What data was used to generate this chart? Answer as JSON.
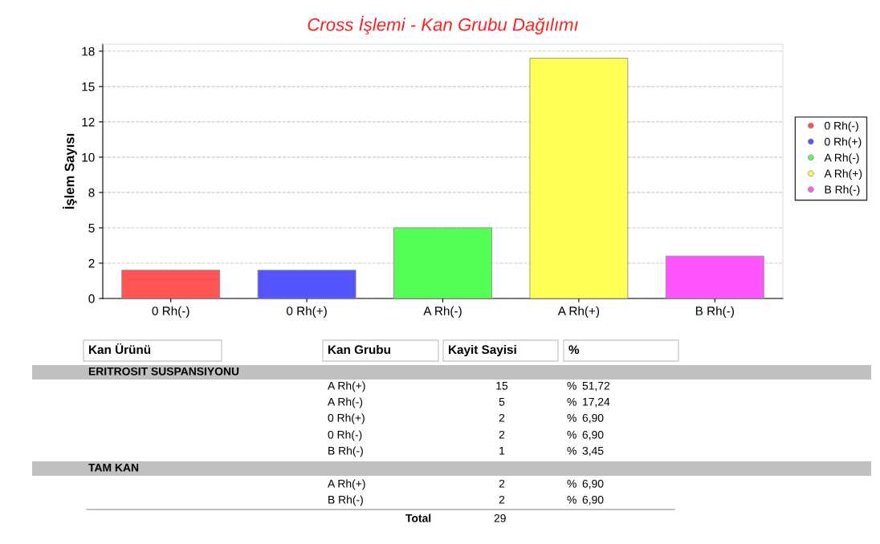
{
  "chart_data": {
    "type": "bar",
    "title": "Cross İşlemi - Kan Grubu Dağılımı",
    "ylabel": "İşlem Sayısı",
    "categories": [
      "0 Rh(-)",
      "0 Rh(+)",
      "A Rh(-)",
      "A Rh(+)",
      "B Rh(-)"
    ],
    "series": [
      {
        "name": "0 Rh(-)",
        "color": "#ff5555",
        "values": [
          2,
          null,
          null,
          null,
          null
        ]
      },
      {
        "name": "0 Rh(+)",
        "color": "#5555ff",
        "values": [
          null,
          2,
          null,
          null,
          null
        ]
      },
      {
        "name": "A Rh(-)",
        "color": "#55ff55",
        "values": [
          null,
          null,
          5,
          null,
          null
        ]
      },
      {
        "name": "A Rh(+)",
        "color": "#ffff55",
        "values": [
          null,
          null,
          null,
          17,
          null
        ]
      },
      {
        "name": "B Rh(-)",
        "color": "#ff55ff",
        "values": [
          null,
          null,
          null,
          null,
          3
        ]
      }
    ],
    "ylim": [
      0,
      18
    ],
    "yticks": [
      0,
      {
        "value": 2.5,
        "label": "2"
      },
      5,
      {
        "value": 7.5,
        "label": "8"
      },
      10,
      {
        "value": 12.5,
        "label": "12"
      },
      15,
      {
        "value": 17.5,
        "label": "18"
      }
    ],
    "grid": "y",
    "legend": "right",
    "marker": "circle",
    "annotations": [
      "Kan Ürünü",
      "Kan Grubu",
      "Kayit Sayisi",
      "%",
      "ERITROSIT SUSPANSIYONU",
      "A Rh(+)",
      "15",
      "%",
      "51,72",
      "A Rh(-)",
      "5",
      "%",
      "17,24",
      "0 Rh(+)",
      "2",
      "%",
      "6,90",
      "0 Rh(-)",
      "2",
      "%",
      "6,90",
      "B Rh(-)",
      "1",
      "%",
      "3,45",
      "TAM KAN",
      "A Rh(+)",
      "2",
      "%",
      "6,90",
      "B Rh(-)",
      "2",
      "%",
      "6,90",
      "Total",
      "29"
    ]
  }
}
